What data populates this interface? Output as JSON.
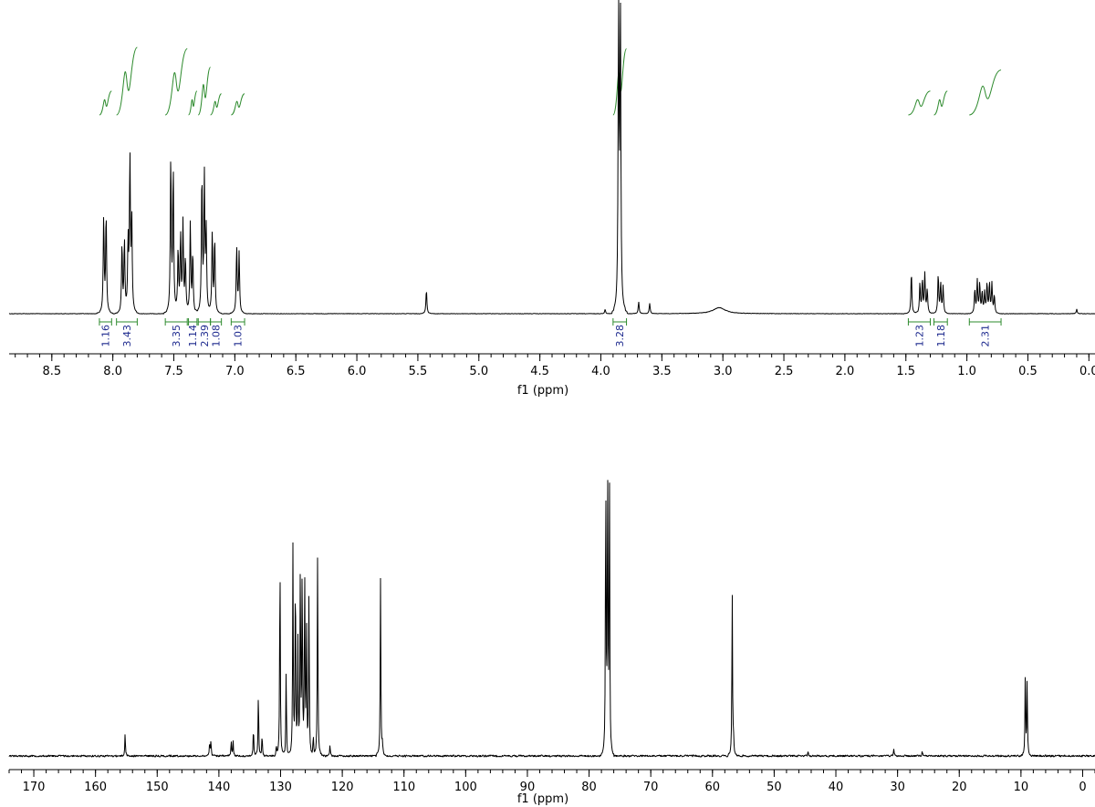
{
  "chart_data": [
    {
      "type": "line",
      "nucleus": "1H",
      "xlabel": "f1 (ppm)",
      "xlim": [
        8.85,
        -0.05
      ],
      "x_reversed": true,
      "xticks": [
        "8.5",
        "8.0",
        "7.5",
        "7.0",
        "6.5",
        "6.0",
        "5.5",
        "5.0",
        "4.5",
        "4.0",
        "3.5",
        "3.0",
        "2.5",
        "2.0",
        "1.5",
        "1.0",
        "0.5",
        "0.0"
      ],
      "colors": {
        "spectrum": "#000000",
        "integral": "#2e8b2e",
        "integral_label": "#1f2b8f"
      },
      "peaks": [
        {
          "ppm": 8.075,
          "height": 0.32
        },
        {
          "ppm": 8.055,
          "height": 0.33
        },
        {
          "ppm": 7.925,
          "height": 0.23
        },
        {
          "ppm": 7.905,
          "height": 0.24
        },
        {
          "ppm": 7.875,
          "height": 0.23
        },
        {
          "ppm": 7.86,
          "height": 0.51
        },
        {
          "ppm": 7.845,
          "height": 0.31
        },
        {
          "ppm": 7.525,
          "height": 0.52
        },
        {
          "ppm": 7.505,
          "height": 0.48
        },
        {
          "ppm": 7.465,
          "height": 0.21
        },
        {
          "ppm": 7.445,
          "height": 0.26
        },
        {
          "ppm": 7.425,
          "height": 0.3
        },
        {
          "ppm": 7.405,
          "height": 0.18
        },
        {
          "ppm": 7.365,
          "height": 0.3
        },
        {
          "ppm": 7.345,
          "height": 0.2
        },
        {
          "ppm": 7.27,
          "height": 0.46
        },
        {
          "ppm": 7.25,
          "height": 0.45
        },
        {
          "ppm": 7.235,
          "height": 0.27
        },
        {
          "ppm": 7.185,
          "height": 0.27
        },
        {
          "ppm": 7.165,
          "height": 0.25
        },
        {
          "ppm": 6.985,
          "height": 0.22
        },
        {
          "ppm": 6.965,
          "height": 0.2
        },
        {
          "ppm": 5.43,
          "height": 0.08
        },
        {
          "ppm": 3.965,
          "height": 0.015
        },
        {
          "ppm": 3.855,
          "height": 1.0
        },
        {
          "ppm": 3.84,
          "height": 1.0
        },
        {
          "ppm": 3.69,
          "height": 0.04
        },
        {
          "ppm": 3.6,
          "height": 0.035
        },
        {
          "ppm": 1.455,
          "height": 0.14
        },
        {
          "ppm": 1.385,
          "height": 0.1
        },
        {
          "ppm": 1.365,
          "height": 0.11
        },
        {
          "ppm": 1.345,
          "height": 0.13
        },
        {
          "ppm": 1.325,
          "height": 0.08
        },
        {
          "ppm": 1.235,
          "height": 0.13
        },
        {
          "ppm": 1.215,
          "height": 0.1
        },
        {
          "ppm": 1.195,
          "height": 0.09
        },
        {
          "ppm": 0.935,
          "height": 0.08
        },
        {
          "ppm": 0.915,
          "height": 0.11
        },
        {
          "ppm": 0.895,
          "height": 0.1
        },
        {
          "ppm": 0.875,
          "height": 0.07
        },
        {
          "ppm": 0.855,
          "height": 0.07
        },
        {
          "ppm": 0.835,
          "height": 0.1
        },
        {
          "ppm": 0.815,
          "height": 0.1
        },
        {
          "ppm": 0.795,
          "height": 0.1
        },
        {
          "ppm": 0.775,
          "height": 0.06
        },
        {
          "ppm": 0.1,
          "height": 0.015
        }
      ],
      "broad_peaks": [
        {
          "ppm": 3.03,
          "height": 0.02,
          "width": 0.06
        }
      ],
      "integrals": [
        {
          "from": 8.11,
          "to": 8.01,
          "value": "1.16",
          "rise": 0.09
        },
        {
          "from": 7.97,
          "to": 7.8,
          "value": "3.43",
          "rise": 0.26
        },
        {
          "from": 7.57,
          "to": 7.39,
          "value": "3.35",
          "rise": 0.25
        },
        {
          "from": 7.38,
          "to": 7.31,
          "value": "1.14",
          "rise": 0.09
        },
        {
          "from": 7.3,
          "to": 7.2,
          "value": "2.39",
          "rise": 0.18
        },
        {
          "from": 7.2,
          "to": 7.11,
          "value": "1.08",
          "rise": 0.08
        },
        {
          "from": 7.03,
          "to": 6.92,
          "value": "1.03",
          "rise": 0.08
        },
        {
          "from": 3.9,
          "to": 3.79,
          "value": "3.28",
          "rise": 0.25
        },
        {
          "from": 1.48,
          "to": 1.3,
          "value": "1.23",
          "rise": 0.09
        },
        {
          "from": 1.27,
          "to": 1.16,
          "value": "1.18",
          "rise": 0.09
        },
        {
          "from": 0.98,
          "to": 0.72,
          "value": "2.31",
          "rise": 0.17
        }
      ]
    },
    {
      "type": "line",
      "nucleus": "13C",
      "xlabel": "f1 (ppm)",
      "xlim": [
        174.0,
        -2.0
      ],
      "x_reversed": true,
      "xticks": [
        "170",
        "160",
        "150",
        "140",
        "130",
        "120",
        "110",
        "100",
        "90",
        "80",
        "70",
        "60",
        "50",
        "40",
        "30",
        "20",
        "10",
        "0"
      ],
      "colors": {
        "spectrum": "#000000"
      },
      "peaks": [
        {
          "ppm": 155.2,
          "height": 0.08
        },
        {
          "ppm": 141.5,
          "height": 0.05
        },
        {
          "ppm": 141.3,
          "height": 0.05
        },
        {
          "ppm": 138.0,
          "height": 0.05
        },
        {
          "ppm": 137.7,
          "height": 0.05
        },
        {
          "ppm": 134.4,
          "height": 0.1
        },
        {
          "ppm": 133.6,
          "height": 0.22
        },
        {
          "ppm": 133.0,
          "height": 0.07
        },
        {
          "ppm": 130.7,
          "height": 0.03
        },
        {
          "ppm": 130.1,
          "height": 0.72
        },
        {
          "ppm": 129.1,
          "height": 0.3
        },
        {
          "ppm": 128.0,
          "height": 0.73
        },
        {
          "ppm": 127.6,
          "height": 0.66
        },
        {
          "ppm": 127.2,
          "height": 0.4
        },
        {
          "ppm": 126.8,
          "height": 0.67
        },
        {
          "ppm": 126.5,
          "height": 0.66
        },
        {
          "ppm": 126.1,
          "height": 0.64
        },
        {
          "ppm": 125.8,
          "height": 0.45
        },
        {
          "ppm": 125.4,
          "height": 0.57
        },
        {
          "ppm": 124.7,
          "height": 0.07
        },
        {
          "ppm": 124.0,
          "height": 0.71
        },
        {
          "ppm": 122.0,
          "height": 0.04
        },
        {
          "ppm": 113.8,
          "height": 0.62
        },
        {
          "ppm": 113.5,
          "height": 0.04
        },
        {
          "ppm": 77.3,
          "height": 0.99
        },
        {
          "ppm": 77.0,
          "height": 1.0
        },
        {
          "ppm": 76.7,
          "height": 0.98
        },
        {
          "ppm": 56.8,
          "height": 0.57
        },
        {
          "ppm": 56.6,
          "height": 0.06
        },
        {
          "ppm": 44.5,
          "height": 0.015
        },
        {
          "ppm": 30.6,
          "height": 0.025
        },
        {
          "ppm": 26.0,
          "height": 0.015
        },
        {
          "ppm": 9.3,
          "height": 0.28
        },
        {
          "ppm": 9.0,
          "height": 0.27
        }
      ]
    }
  ]
}
